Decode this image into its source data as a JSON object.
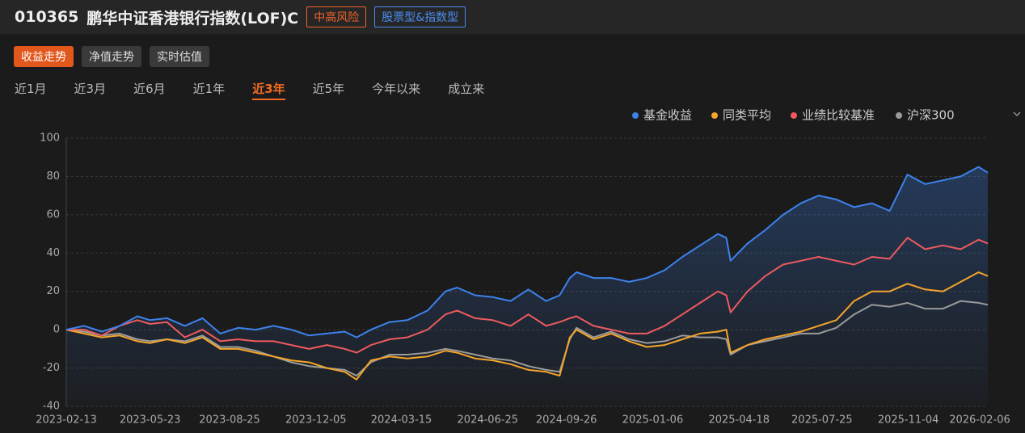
{
  "header": {
    "code": "010365",
    "name": "鹏华中证香港银行指数(LOF)C",
    "tags": [
      "中高风险",
      "股票型&指数型"
    ]
  },
  "view_tabs": [
    "收益走势",
    "净值走势",
    "实时估值"
  ],
  "period_tabs": [
    "近1月",
    "近3月",
    "近6月",
    "近1年",
    "近3年",
    "近5年",
    "今年以来",
    "成立来"
  ],
  "chart_data": {
    "type": "line",
    "legend": "top-right",
    "grid": true,
    "x": [
      "2023-02-13",
      "2023-03-06",
      "2023-03-27",
      "2023-04-17",
      "2023-05-08",
      "2023-05-23",
      "2023-06-12",
      "2023-07-03",
      "2023-07-24",
      "2023-08-14",
      "2023-09-04",
      "2023-09-25",
      "2023-10-16",
      "2023-11-06",
      "2023-11-27",
      "2023-12-18",
      "2024-01-08",
      "2024-01-22",
      "2024-02-08",
      "2024-03-01",
      "2024-03-22",
      "2024-04-15",
      "2024-05-06",
      "2024-05-20",
      "2024-06-10",
      "2024-07-01",
      "2024-07-22",
      "2024-08-12",
      "2024-09-02",
      "2024-09-18",
      "2024-09-30",
      "2024-10-08",
      "2024-10-28",
      "2024-11-18",
      "2024-12-09",
      "2024-12-30",
      "2025-01-20",
      "2025-02-10",
      "2025-03-03",
      "2025-03-24",
      "2025-04-03",
      "2025-04-08",
      "2025-04-28",
      "2025-05-19",
      "2025-06-09",
      "2025-06-30",
      "2025-07-21",
      "2025-08-11",
      "2025-09-01",
      "2025-09-22",
      "2025-10-13",
      "2025-11-03",
      "2025-11-24",
      "2025-12-15",
      "2026-01-05",
      "2026-01-26",
      "2026-02-06"
    ],
    "series": [
      {
        "name": "基金收益",
        "color": "#3d82ec",
        "values": [
          0,
          2,
          -1,
          2,
          7,
          5,
          6,
          2,
          6,
          -2,
          1,
          0,
          2,
          0,
          -3,
          -2,
          -1,
          -4,
          0,
          4,
          5,
          10,
          20,
          22,
          18,
          17,
          15,
          21,
          15,
          18,
          27,
          30,
          27,
          27,
          25,
          27,
          31,
          38,
          44,
          50,
          48,
          36,
          45,
          52,
          60,
          66,
          70,
          68,
          64,
          66,
          62,
          81,
          76,
          78,
          80,
          85,
          82
        ]
      },
      {
        "name": "同类平均",
        "color": "#f5a52a",
        "values": [
          0,
          -2,
          -4,
          -3,
          -6,
          -7,
          -5,
          -7,
          -4,
          -10,
          -10,
          -12,
          -14,
          -16,
          -17,
          -20,
          -22,
          -26,
          -16,
          -14,
          -15,
          -14,
          -11,
          -12,
          -15,
          -16,
          -18,
          -21,
          -22,
          -24,
          -4,
          0,
          -5,
          -2,
          -6,
          -9,
          -8,
          -5,
          -2,
          -1,
          0,
          -12,
          -8,
          -5,
          -3,
          -1,
          2,
          5,
          15,
          20,
          20,
          24,
          21,
          20,
          25,
          30,
          28
        ]
      },
      {
        "name": "业绩比较基准",
        "color": "#ee5a5f",
        "values": [
          0,
          0,
          -3,
          2,
          5,
          3,
          4,
          -4,
          0,
          -6,
          -5,
          -6,
          -6,
          -8,
          -10,
          -8,
          -10,
          -12,
          -8,
          -5,
          -4,
          0,
          8,
          10,
          6,
          5,
          2,
          8,
          2,
          4,
          6,
          7,
          2,
          0,
          -2,
          -2,
          2,
          8,
          14,
          20,
          18,
          9,
          20,
          28,
          34,
          36,
          38,
          36,
          34,
          38,
          37,
          48,
          42,
          44,
          42,
          47,
          45
        ]
      },
      {
        "name": "沪深300",
        "color": "#9b9b9b",
        "values": [
          0,
          -1,
          -3,
          -2,
          -5,
          -6,
          -5,
          -6,
          -3,
          -9,
          -9,
          -11,
          -14,
          -17,
          -19,
          -20,
          -21,
          -24,
          -17,
          -13,
          -13,
          -12,
          -10,
          -11,
          -13,
          -15,
          -16,
          -19,
          -21,
          -22,
          -5,
          1,
          -4,
          -1,
          -5,
          -7,
          -6,
          -3,
          -4,
          -4,
          -5,
          -13,
          -8,
          -6,
          -4,
          -2,
          -2,
          1,
          8,
          13,
          12,
          14,
          11,
          11,
          15,
          14,
          13
        ]
      }
    ],
    "xlim": [
      "2023-02-13",
      "2026-02-06"
    ],
    "xticks": [
      "2023-02-13",
      "2023-05-23",
      "2023-08-25",
      "2023-12-05",
      "2024-03-15",
      "2024-06-25",
      "2024-09-26",
      "2025-01-06",
      "2025-04-18",
      "2025-07-25",
      "2025-11-04",
      "2026-02-06"
    ],
    "ylim": [
      -40,
      100
    ],
    "yticks": [
      -40,
      -20,
      0,
      20,
      40,
      60,
      80,
      100
    ]
  }
}
